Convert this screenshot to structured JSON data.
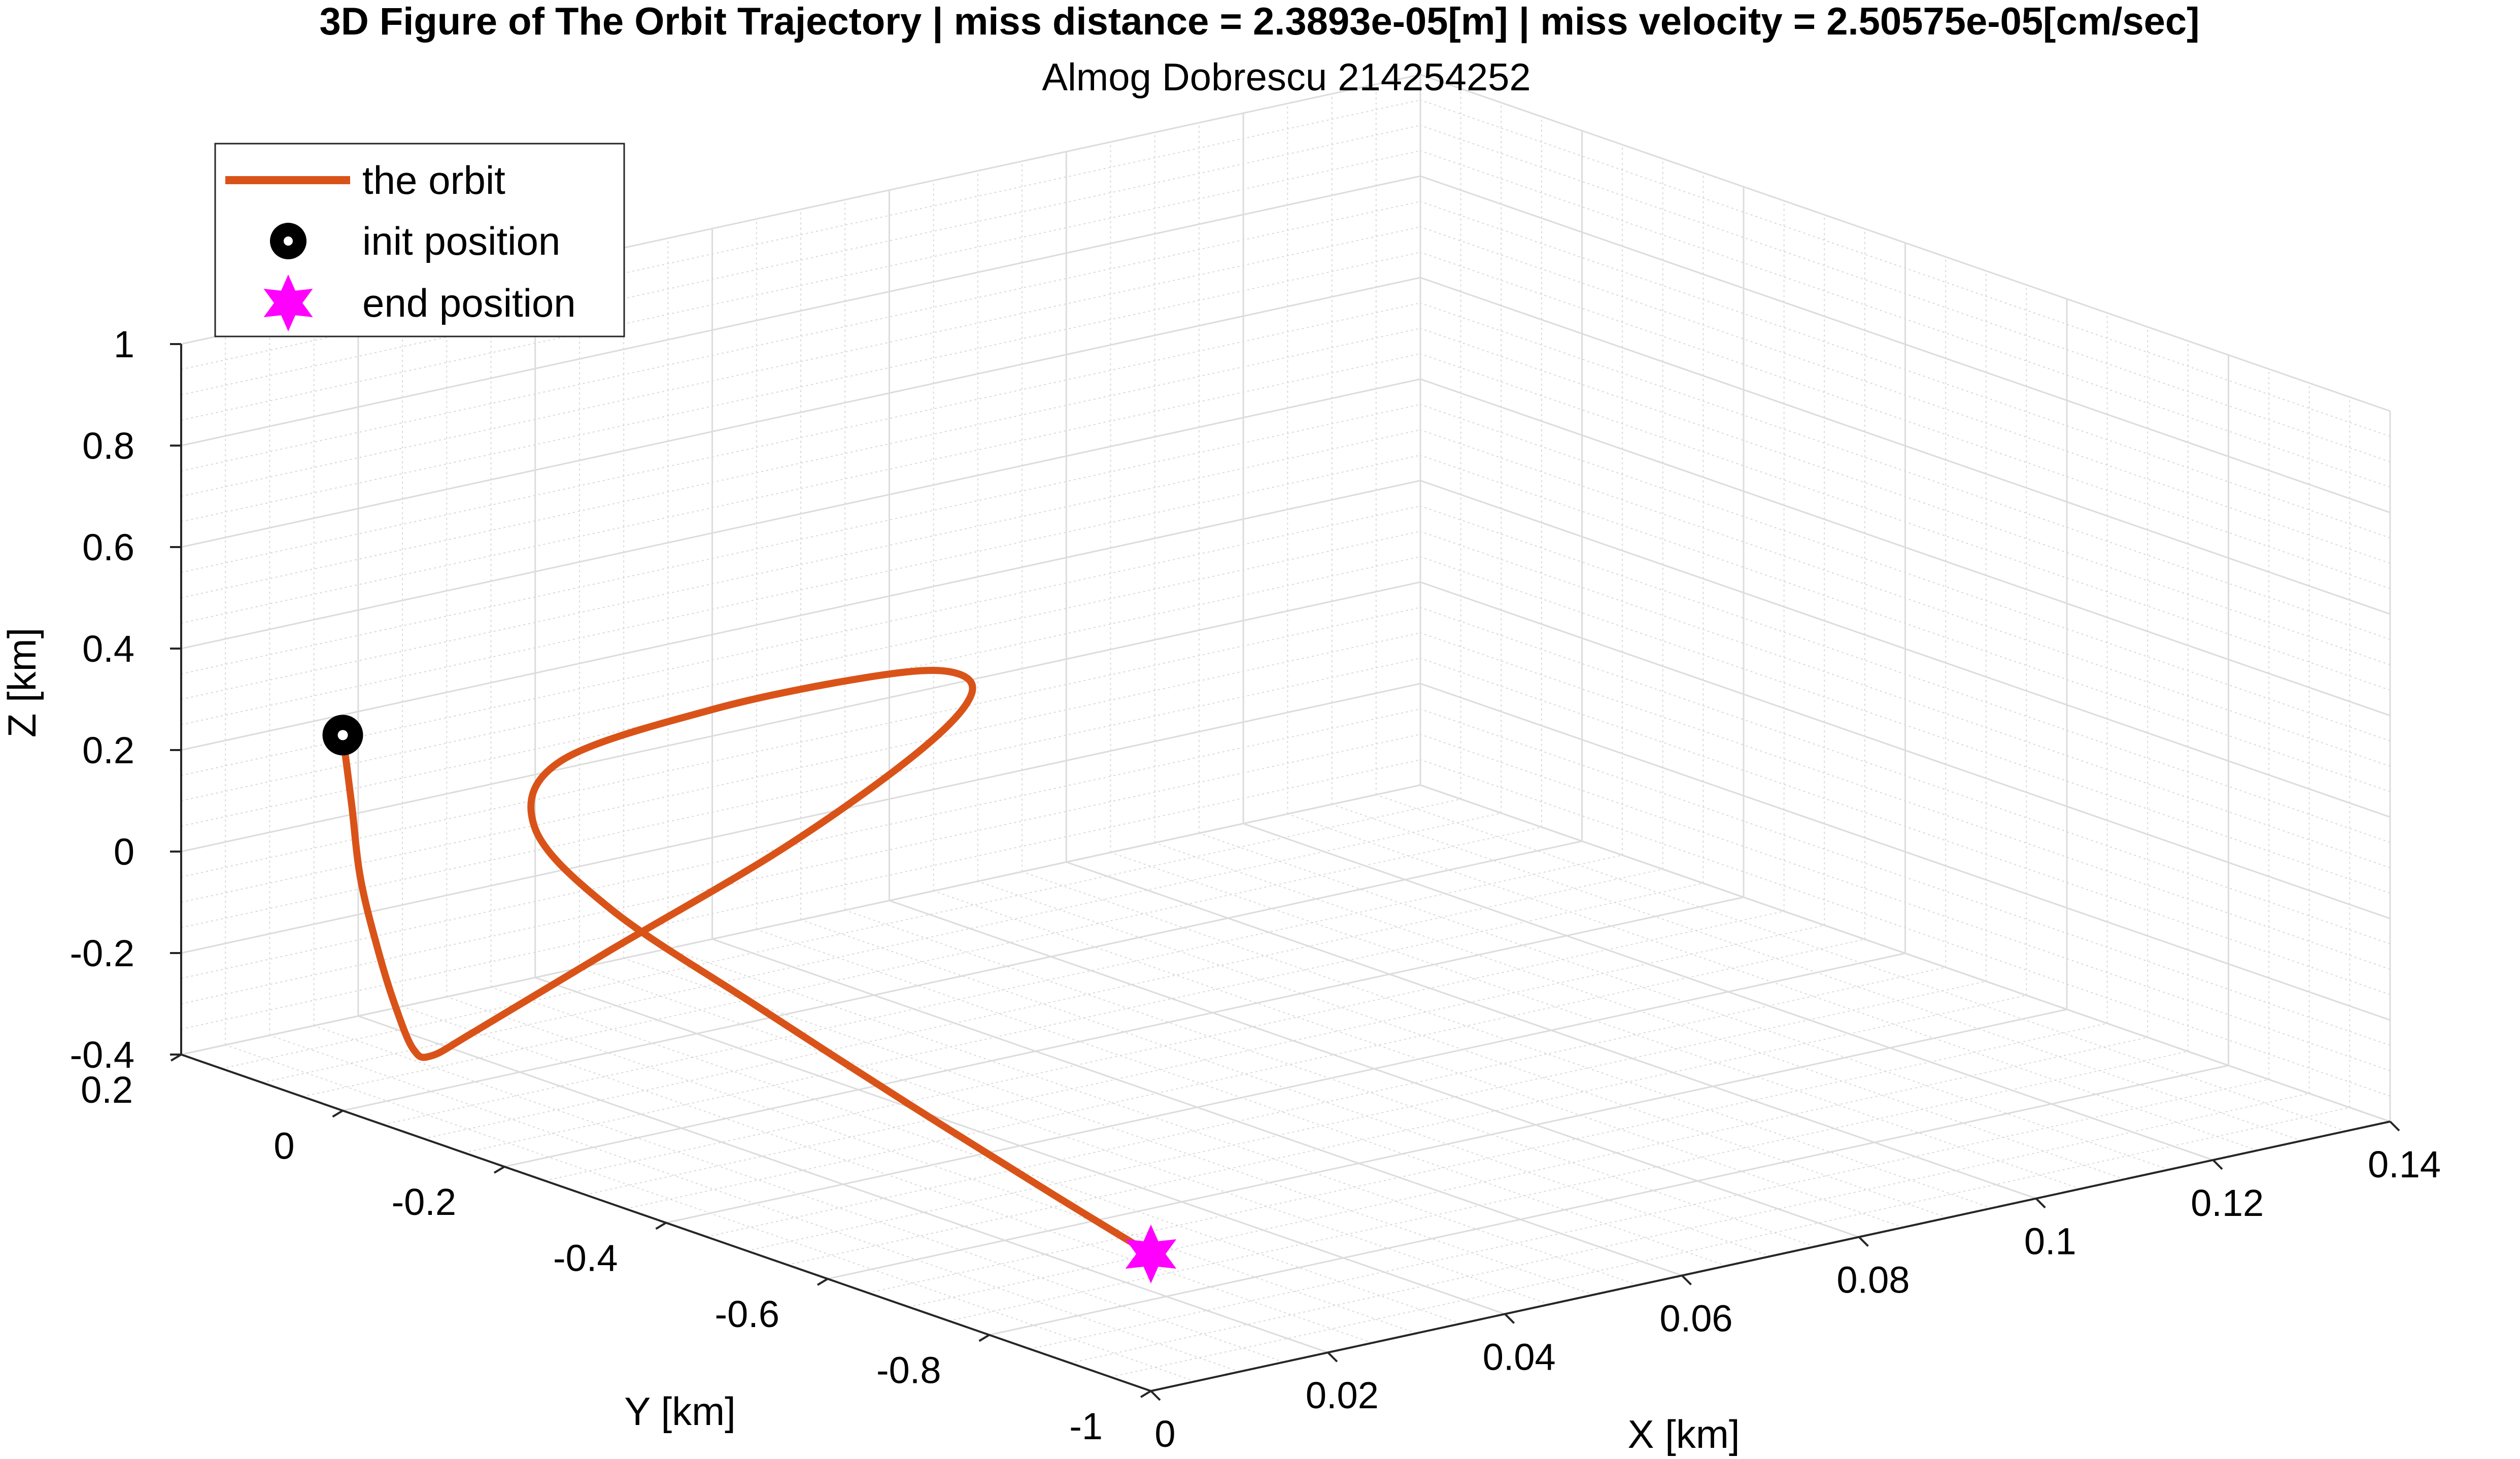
{
  "chart_data": {
    "type": "line",
    "title": "3D Figure of The Orbit Trajectory | miss distance = 2.3893e-05[m] | miss velocity = 2.50575e-05[cm/sec]",
    "subtitle": "Almog Dobrescu 214254252",
    "xlabel": "X [km]",
    "ylabel": "Y [km]",
    "zlabel": "Z [km]",
    "xlim": [
      0,
      0.14
    ],
    "ylim": [
      -1,
      0.2
    ],
    "zlim": [
      -0.4,
      1
    ],
    "x_ticks": [
      "0",
      "0.02",
      "0.04",
      "0.06",
      "0.08",
      "0.1",
      "0.12",
      "0.14"
    ],
    "y_ticks": [
      "-1",
      "-0.8",
      "-0.6",
      "-0.4",
      "-0.2",
      "0",
      "0.2"
    ],
    "z_ticks": [
      "-0.4",
      "-0.2",
      "0",
      "0.2",
      "0.4",
      "0.6",
      "0.8",
      "1"
    ],
    "grid": true,
    "minor_grid": true,
    "legend_position": "top-left",
    "legend": [
      {
        "label": "the orbit",
        "marker": "line"
      },
      {
        "label": "init position",
        "marker": "circle"
      },
      {
        "label": "end position",
        "marker": "hexagram"
      }
    ],
    "series": [
      {
        "name": "the orbit",
        "color": "#D95319",
        "points": [
          {
            "x": 0.0,
            "y": 0.0,
            "z": 0.34
          },
          {
            "x": 0.001,
            "y": 0.0,
            "z": 0.2
          },
          {
            "x": 0.002,
            "y": 0.0,
            "z": 0.05
          },
          {
            "x": 0.004,
            "y": 0.0,
            "z": -0.1
          },
          {
            "x": 0.006,
            "y": 0.0,
            "z": -0.22
          },
          {
            "x": 0.008,
            "y": 0.0,
            "z": -0.31
          },
          {
            "x": 0.01,
            "y": 0.0,
            "z": -0.33
          },
          {
            "x": 0.015,
            "y": 0.0,
            "z": -0.3
          },
          {
            "x": 0.03,
            "y": 0.0,
            "z": -0.2
          },
          {
            "x": 0.05,
            "y": 0.0,
            "z": -0.07
          },
          {
            "x": 0.065,
            "y": 0.0,
            "z": 0.06
          },
          {
            "x": 0.071,
            "y": 0.0,
            "z": 0.15
          },
          {
            "x": 0.068,
            "y": -0.005,
            "z": 0.21
          },
          {
            "x": 0.058,
            "y": -0.012,
            "z": 0.24
          },
          {
            "x": 0.04,
            "y": -0.02,
            "z": 0.25
          },
          {
            "x": 0.02,
            "y": -0.05,
            "z": 0.24
          },
          {
            "x": 0.008,
            "y": -0.15,
            "z": 0.21
          },
          {
            "x": 0.003,
            "y": -0.3,
            "z": 0.15
          },
          {
            "x": 0.001,
            "y": -0.5,
            "z": 0.08
          },
          {
            "x": 0.0,
            "y": -0.7,
            "z": 0.0
          },
          {
            "x": 0.0,
            "y": -0.88,
            "z": -0.08
          },
          {
            "x": 0.0,
            "y": -1.0,
            "z": -0.13
          }
        ]
      },
      {
        "name": "init position",
        "color": "#000000",
        "points": [
          {
            "x": 0.0,
            "y": 0.0,
            "z": 0.34
          }
        ]
      },
      {
        "name": "end position",
        "color": "#FF00FF",
        "points": [
          {
            "x": 0.0,
            "y": -1.0,
            "z": -0.13
          }
        ]
      }
    ]
  }
}
